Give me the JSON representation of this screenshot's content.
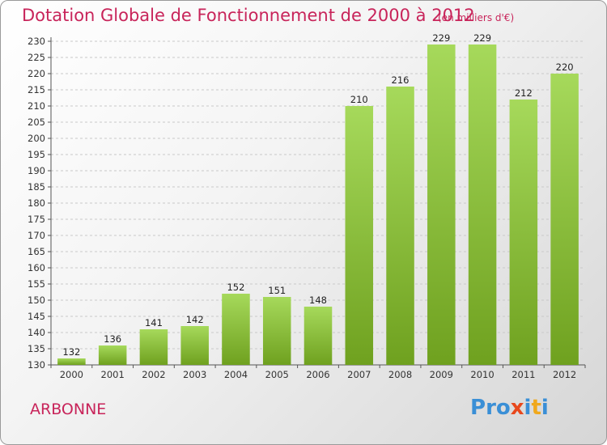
{
  "header": {
    "title": "Dotation Globale de Fonctionnement de 2000 à 2012",
    "unit": "(en milliers d'€)"
  },
  "footer": {
    "commune": "ARBONNE",
    "brand": [
      "P",
      "r",
      "o",
      "x",
      "i",
      "t",
      "i"
    ]
  },
  "colors": {
    "title": "#c8245a",
    "bar_light": "#a6d95b",
    "bar_dark": "#6fa11f",
    "brand": [
      "#3a8fd6",
      "#3a8fd6",
      "#3a8fd6",
      "#e8481c",
      "#3a8fd6",
      "#f0a81c",
      "#3a8fd6"
    ]
  },
  "chart_data": {
    "type": "bar",
    "title": "Dotation Globale de Fonctionnement de 2000 à 2012",
    "unit": "(en milliers d'€)",
    "categories": [
      "2000",
      "2001",
      "2002",
      "2003",
      "2004",
      "2005",
      "2006",
      "2007",
      "2008",
      "2009",
      "2010",
      "2011",
      "2012"
    ],
    "values": [
      132,
      136,
      141,
      142,
      152,
      151,
      148,
      210,
      216,
      229,
      229,
      212,
      220
    ],
    "ylim": [
      130,
      230
    ],
    "yticks": [
      130,
      135,
      140,
      145,
      150,
      155,
      160,
      165,
      170,
      175,
      180,
      185,
      190,
      195,
      200,
      205,
      210,
      215,
      220,
      225,
      230
    ],
    "grid": true
  }
}
